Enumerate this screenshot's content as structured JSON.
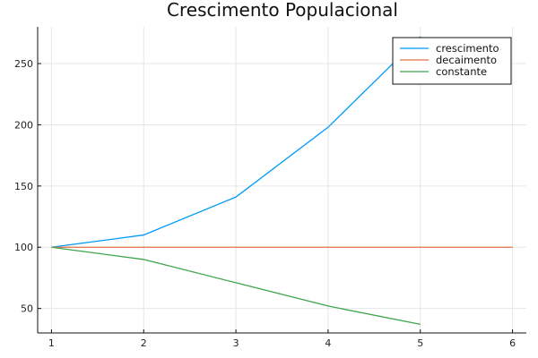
{
  "chart_data": {
    "type": "line",
    "title": "Crescimento Populacional",
    "xlabel": "",
    "ylabel": "",
    "xlim": [
      0.85,
      6.15
    ],
    "ylim": [
      30,
      280
    ],
    "x_ticks": [
      1,
      2,
      3,
      4,
      5,
      6
    ],
    "y_ticks": [
      50,
      100,
      150,
      200,
      250
    ],
    "grid": true,
    "legend_position": "top-right",
    "series": [
      {
        "name": "crescimento",
        "color": "#009af9",
        "x": [
          1,
          2,
          3,
          4,
          5
        ],
        "y": [
          100,
          110,
          141,
          198,
          272
        ]
      },
      {
        "name": "decaimento",
        "color": "#e26f46",
        "x": [
          1,
          2,
          3,
          4,
          5,
          6
        ],
        "y": [
          100,
          100,
          100,
          100,
          100,
          100
        ]
      },
      {
        "name": "constante",
        "color": "#3da44d",
        "x": [
          1,
          2,
          3,
          4,
          5
        ],
        "y": [
          100,
          90,
          71,
          52,
          37
        ]
      }
    ]
  }
}
